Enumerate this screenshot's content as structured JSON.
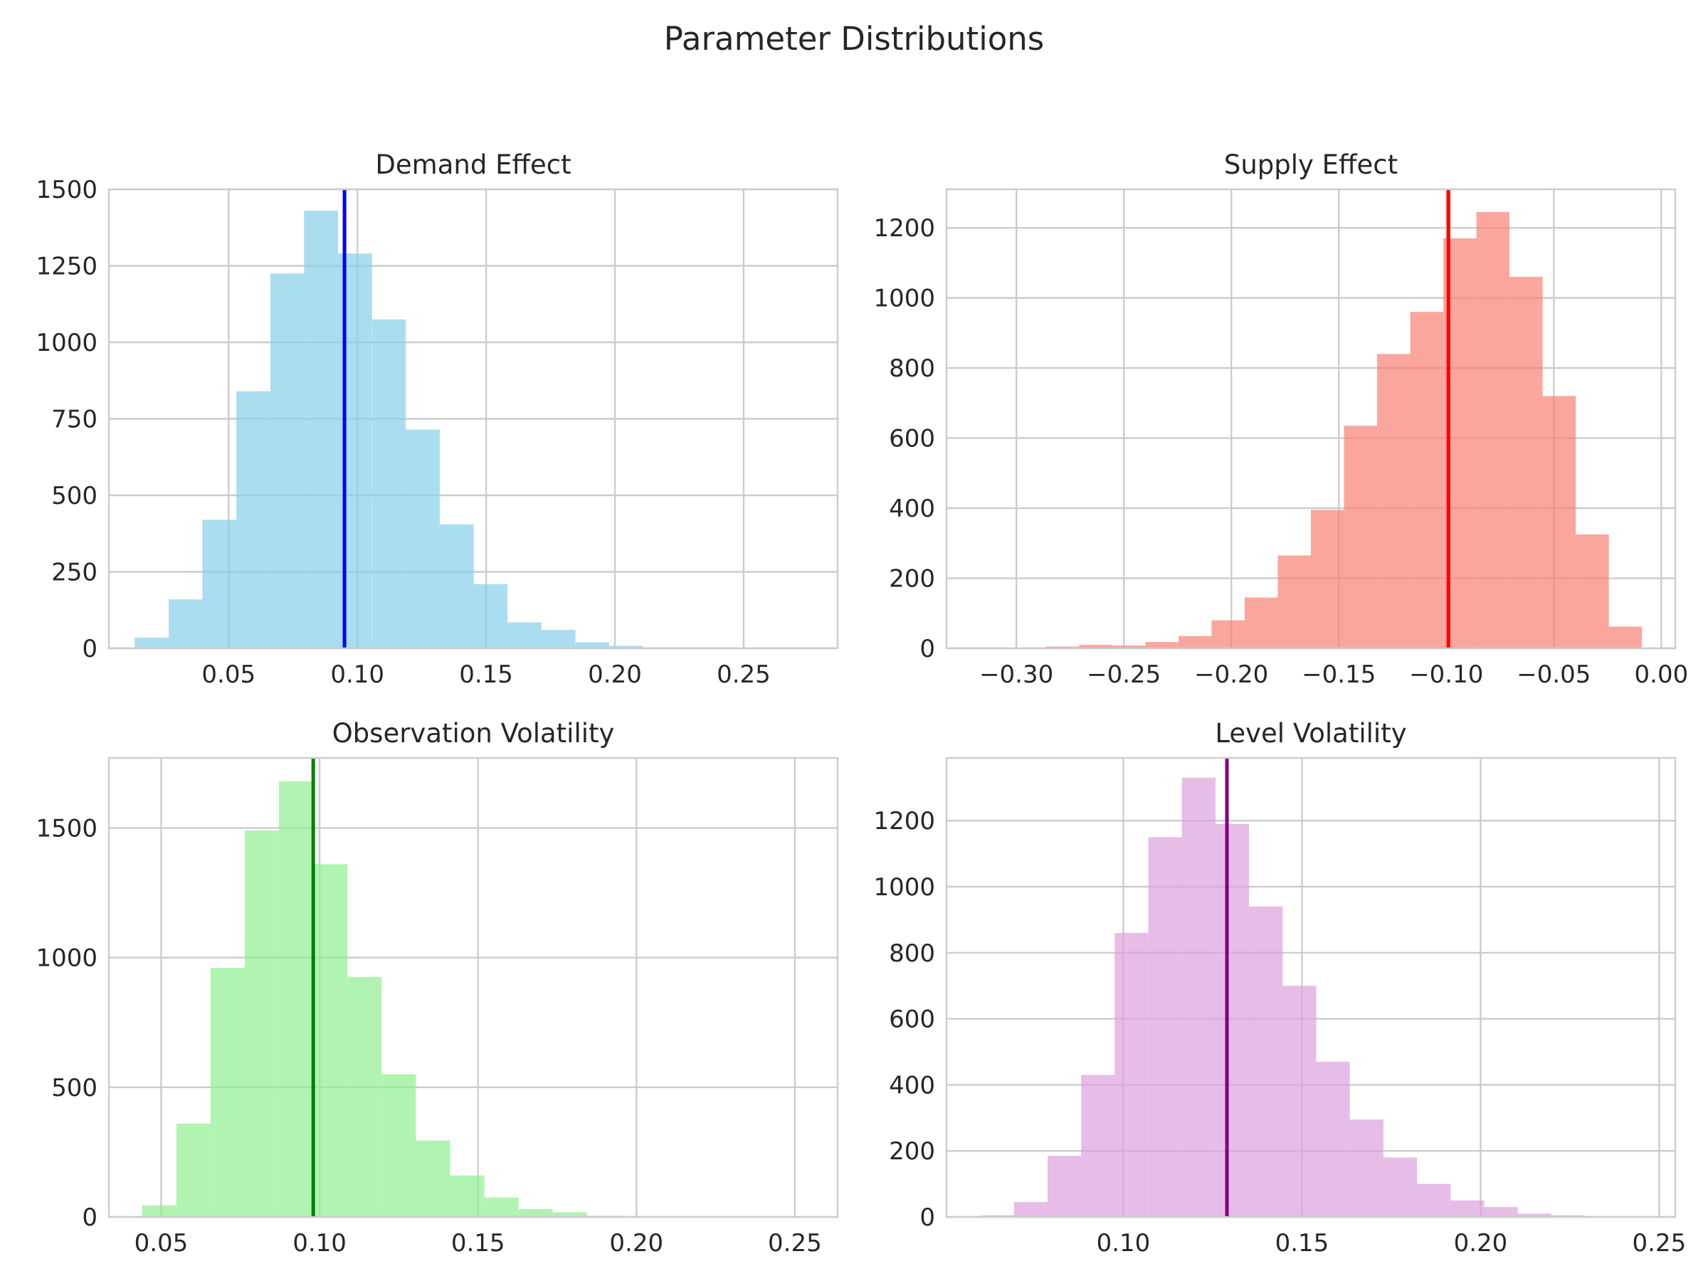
{
  "figure": {
    "title": "Parameter Distributions"
  },
  "chart_data": [
    {
      "type": "bar",
      "title": "Demand Effect",
      "xlabel": "",
      "ylabel": "",
      "xlim": [
        0.0035,
        0.2865
      ],
      "ylim": [
        0,
        1500
      ],
      "xticks": [
        "0.05",
        "0.10",
        "0.15",
        "0.20",
        "0.25"
      ],
      "yticks": [
        "0",
        "250",
        "500",
        "750",
        "1000",
        "1250",
        "1500"
      ],
      "grid": true,
      "color": "#87CEEB",
      "line_color": "#0000FF",
      "mean_line_x": 0.095,
      "bin_edges": [
        0.0135,
        0.0267,
        0.0398,
        0.053,
        0.0662,
        0.0793,
        0.0925,
        0.1057,
        0.1188,
        0.132,
        0.1452,
        0.1583,
        0.1715,
        0.1847,
        0.1978,
        0.211,
        0.2242,
        0.2373,
        0.2505,
        0.2637,
        0.2768
      ],
      "counts": [
        35,
        160,
        420,
        840,
        1225,
        1430,
        1290,
        1075,
        715,
        405,
        210,
        85,
        60,
        20,
        8,
        2,
        1,
        0,
        0,
        1
      ]
    },
    {
      "type": "bar",
      "title": "Supply Effect",
      "xlabel": "",
      "ylabel": "",
      "xlim": [
        -0.3325,
        0.0065
      ],
      "ylim": [
        0,
        1310
      ],
      "xticks": [
        "−0.30",
        "−0.25",
        "−0.20",
        "−0.15",
        "−0.10",
        "−0.05",
        "0.00"
      ],
      "yticks": [
        "0",
        "200",
        "400",
        "600",
        "800",
        "1000",
        "1200"
      ],
      "grid": true,
      "color": "#FA8072",
      "line_color": "#FF0000",
      "mean_line_x": -0.099,
      "bin_edges": [
        -0.317,
        -0.3016,
        -0.2862,
        -0.2708,
        -0.2554,
        -0.24,
        -0.2246,
        -0.2092,
        -0.1938,
        -0.1784,
        -0.163,
        -0.1476,
        -0.1322,
        -0.1168,
        -0.1014,
        -0.086,
        -0.0706,
        -0.0552,
        -0.0398,
        -0.0244,
        -0.009
      ],
      "counts": [
        1,
        2,
        5,
        10,
        8,
        18,
        35,
        80,
        145,
        265,
        395,
        635,
        840,
        960,
        1170,
        1245,
        1060,
        720,
        325,
        62
      ]
    },
    {
      "type": "bar",
      "title": "Observation Volatility",
      "xlabel": "",
      "ylabel": "",
      "xlim": [
        0.0335,
        0.2635
      ],
      "ylim": [
        0,
        1770
      ],
      "xticks": [
        "0.05",
        "0.10",
        "0.15",
        "0.20",
        "0.25"
      ],
      "yticks": [
        "0",
        "500",
        "1000",
        "1500"
      ],
      "grid": true,
      "color": "#90EE90",
      "line_color": "#008000",
      "mean_line_x": 0.098,
      "bin_edges": [
        0.044,
        0.0548,
        0.0656,
        0.0764,
        0.0872,
        0.098,
        0.1088,
        0.1196,
        0.1304,
        0.1412,
        0.152,
        0.1628,
        0.1736,
        0.1844,
        0.1952,
        0.206,
        0.2168,
        0.2276,
        0.2384,
        0.2492,
        0.26
      ],
      "counts": [
        45,
        360,
        960,
        1490,
        1680,
        1360,
        925,
        550,
        295,
        160,
        75,
        30,
        18,
        5,
        3,
        1,
        1,
        0,
        0,
        1
      ]
    },
    {
      "type": "bar",
      "title": "Level Volatility",
      "xlabel": "",
      "ylabel": "",
      "xlim": [
        0.0505,
        0.2545
      ],
      "ylim": [
        0,
        1390
      ],
      "xticks": [
        "0.10",
        "0.15",
        "0.20",
        "0.25"
      ],
      "yticks": [
        "0",
        "200",
        "400",
        "600",
        "800",
        "1000",
        "1200"
      ],
      "grid": true,
      "color": "#DDA0DD",
      "line_color": "#800080",
      "mean_line_x": 0.129,
      "bin_edges": [
        0.06,
        0.0694,
        0.0788,
        0.0882,
        0.0976,
        0.107,
        0.1164,
        0.1258,
        0.1352,
        0.1446,
        0.154,
        0.1634,
        0.1728,
        0.1822,
        0.1916,
        0.201,
        0.2104,
        0.2198,
        0.2292,
        0.2386,
        0.248
      ],
      "counts": [
        5,
        45,
        185,
        430,
        860,
        1150,
        1330,
        1190,
        940,
        700,
        470,
        295,
        180,
        100,
        50,
        30,
        10,
        5,
        2,
        1
      ]
    }
  ]
}
